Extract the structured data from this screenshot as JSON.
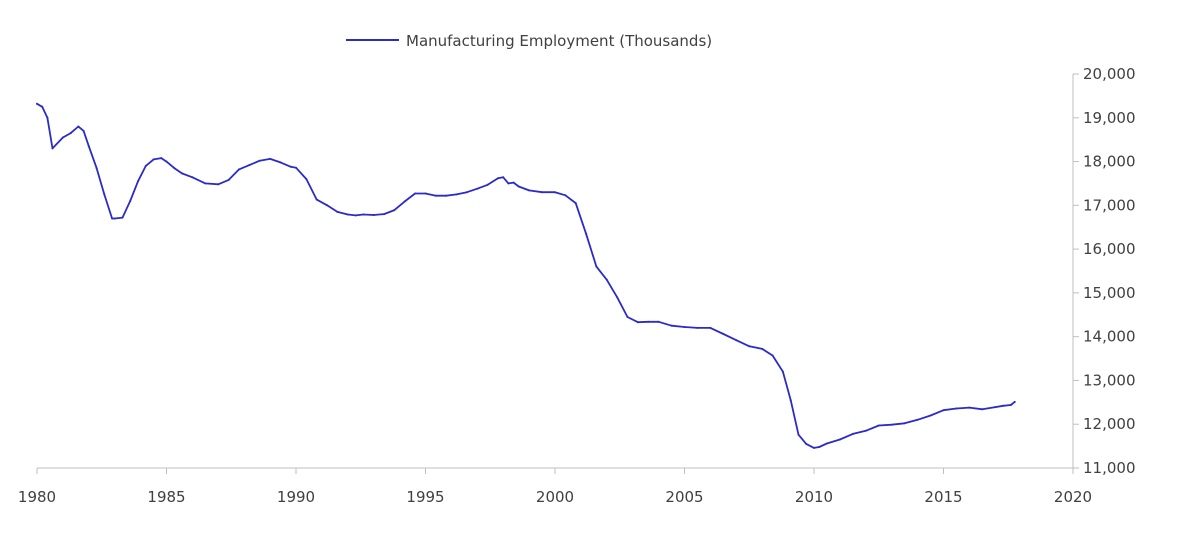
{
  "chart_data": {
    "type": "line",
    "legend": {
      "label": "Manufacturing Employment  (Thousands)",
      "placement": "top"
    },
    "colors": {
      "series": "#2b2bc8",
      "axis": "#bfbfbf",
      "text": "#404040"
    },
    "x_axis": {
      "min": 1980,
      "max": 2020,
      "ticks": [
        1980,
        1985,
        1990,
        1995,
        2000,
        2005,
        2010,
        2015,
        2020
      ],
      "tick_labels": [
        "1980",
        "1985",
        "1990",
        "1995",
        "2000",
        "2005",
        "2010",
        "2015",
        "2020"
      ]
    },
    "y_axis": {
      "position": "right",
      "min": 11000,
      "max": 20000,
      "ticks": [
        11000,
        12000,
        13000,
        14000,
        15000,
        16000,
        17000,
        18000,
        19000,
        20000
      ],
      "tick_labels": [
        "11,000",
        "12,000",
        "13,000",
        "14,000",
        "15,000",
        "16,000",
        "17,000",
        "18,000",
        "19,000",
        "20,000"
      ]
    },
    "grid": false,
    "series": [
      {
        "name": "Manufacturing Employment  (Thousands)",
        "x": [
          1980.0,
          1980.2,
          1980.4,
          1980.6,
          1981.0,
          1981.3,
          1981.6,
          1981.8,
          1982.0,
          1982.3,
          1982.6,
          1982.9,
          1983.0,
          1983.3,
          1983.6,
          1983.9,
          1984.2,
          1984.5,
          1984.8,
          1985.0,
          1985.3,
          1985.6,
          1986.0,
          1986.5,
          1987.0,
          1987.4,
          1987.8,
          1988.2,
          1988.6,
          1989.0,
          1989.4,
          1989.8,
          1990.0,
          1990.4,
          1990.8,
          1991.2,
          1991.6,
          1992.0,
          1992.3,
          1992.6,
          1993.0,
          1993.4,
          1993.8,
          1994.2,
          1994.6,
          1995.0,
          1995.4,
          1995.8,
          1996.2,
          1996.6,
          1997.0,
          1997.4,
          1997.8,
          1998.0,
          1998.2,
          1998.4,
          1998.6,
          1999.0,
          1999.5,
          2000.0,
          2000.4,
          2000.8,
          2001.2,
          2001.6,
          2002.0,
          2002.4,
          2002.8,
          2003.2,
          2003.6,
          2004.0,
          2004.5,
          2005.0,
          2005.5,
          2006.0,
          2006.5,
          2007.0,
          2007.5,
          2008.0,
          2008.4,
          2008.8,
          2009.1,
          2009.4,
          2009.7,
          2010.0,
          2010.2,
          2010.5,
          2011.0,
          2011.5,
          2012.0,
          2012.5,
          2013.0,
          2013.5,
          2014.0,
          2014.5,
          2015.0,
          2015.5,
          2016.0,
          2016.5,
          2017.0,
          2017.3,
          2017.6,
          2017.75
        ],
        "y": [
          19320,
          19250,
          19000,
          18300,
          18550,
          18650,
          18800,
          18700,
          18350,
          17850,
          17250,
          16700,
          16700,
          16720,
          17100,
          17550,
          17900,
          18050,
          18080,
          18000,
          17850,
          17730,
          17640,
          17500,
          17480,
          17580,
          17820,
          17920,
          18020,
          18060,
          17980,
          17880,
          17860,
          17600,
          17130,
          17000,
          16850,
          16790,
          16770,
          16790,
          16780,
          16800,
          16890,
          17090,
          17270,
          17270,
          17220,
          17220,
          17250,
          17300,
          17380,
          17470,
          17620,
          17640,
          17500,
          17520,
          17430,
          17340,
          17300,
          17300,
          17230,
          17050,
          16350,
          15600,
          15300,
          14900,
          14450,
          14330,
          14340,
          14340,
          14250,
          14220,
          14200,
          14200,
          14060,
          13920,
          13780,
          13720,
          13570,
          13200,
          12550,
          11760,
          11550,
          11460,
          11480,
          11560,
          11650,
          11780,
          11850,
          11970,
          11990,
          12020,
          12100,
          12200,
          12320,
          12360,
          12380,
          12340,
          12390,
          12420,
          12440,
          12510
        ]
      }
    ]
  }
}
